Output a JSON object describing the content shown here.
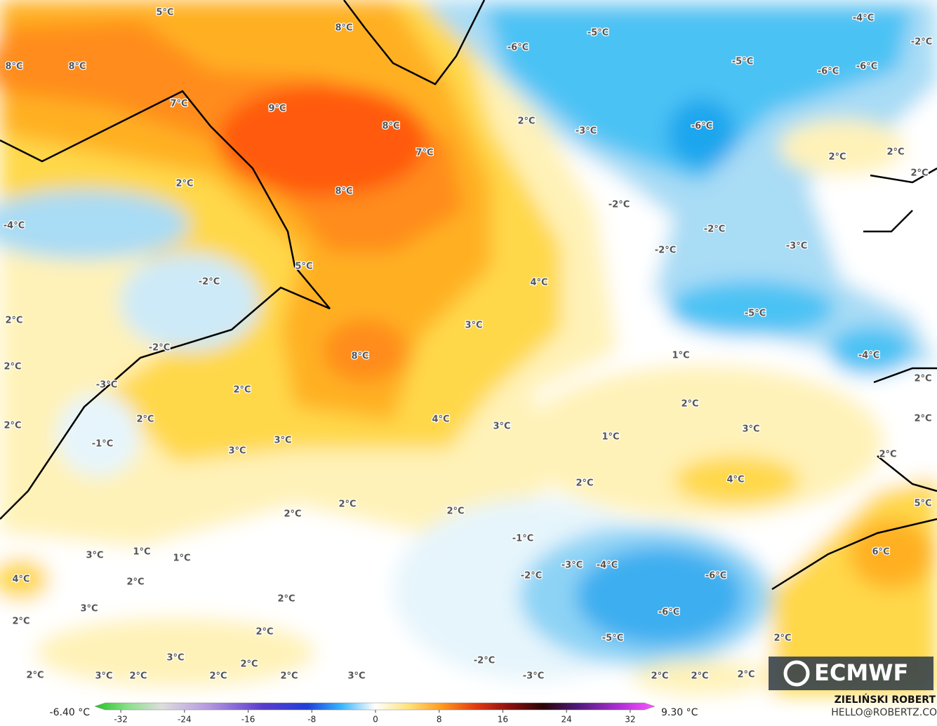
{
  "map": {
    "labels": [
      "5°C",
      "8°C",
      "8°C",
      "8°C",
      "7°C",
      "9°C",
      "8°C",
      "7°C",
      "2°C",
      "-6°C",
      "-5°C",
      "-4°C",
      "-2°C",
      "-5°C",
      "-6°C",
      "-6°C",
      "-3°C",
      "-6°C",
      "2°C",
      "2°C",
      "2°C",
      "2°C",
      "8°C",
      "-2°C",
      "-2°C",
      "-2°C",
      "-3°C",
      "-4°C",
      "5°C",
      "-2°C",
      "4°C",
      "2°C",
      "3°C",
      "-5°C",
      "-2°C",
      "8°C",
      "1°C",
      "-4°C",
      "2°C",
      "-3°C",
      "2°C",
      "2°C",
      "2°C",
      "2°C",
      "4°C",
      "3°C",
      "2°C",
      "2°C",
      "3°C",
      "1°C",
      "3°C",
      "-1°C",
      "3°C",
      "2°C",
      "4°C",
      "2°C",
      "5°C",
      "2°C",
      "2°C",
      "2°C",
      "-1°C",
      "6°C",
      "3°C",
      "1°C",
      "1°C",
      "-3°C",
      "-4°C",
      "4°C",
      "2°C",
      "-2°C",
      "-6°C",
      "2°C",
      "3°C",
      "-6°C",
      "2°C",
      "2°C",
      "-5°C",
      "2°C",
      "3°C",
      "-2°C",
      "2°C",
      "2°C",
      "3°C",
      "2°C",
      "2°C",
      "2°C",
      "3°C",
      "-3°C",
      "2°C",
      "2°C",
      "2°C"
    ]
  },
  "colorbar": {
    "min_label": "-6.40 °C",
    "max_label": "9.30 °C",
    "ticks": [
      -32,
      -24,
      -16,
      -8,
      0,
      8,
      16,
      24,
      32
    ]
  },
  "logo": "ECMWF",
  "credit": {
    "name": "ZIELIŃSKI ROBERT",
    "email": "HELLO@ROBERTZ.CO"
  }
}
